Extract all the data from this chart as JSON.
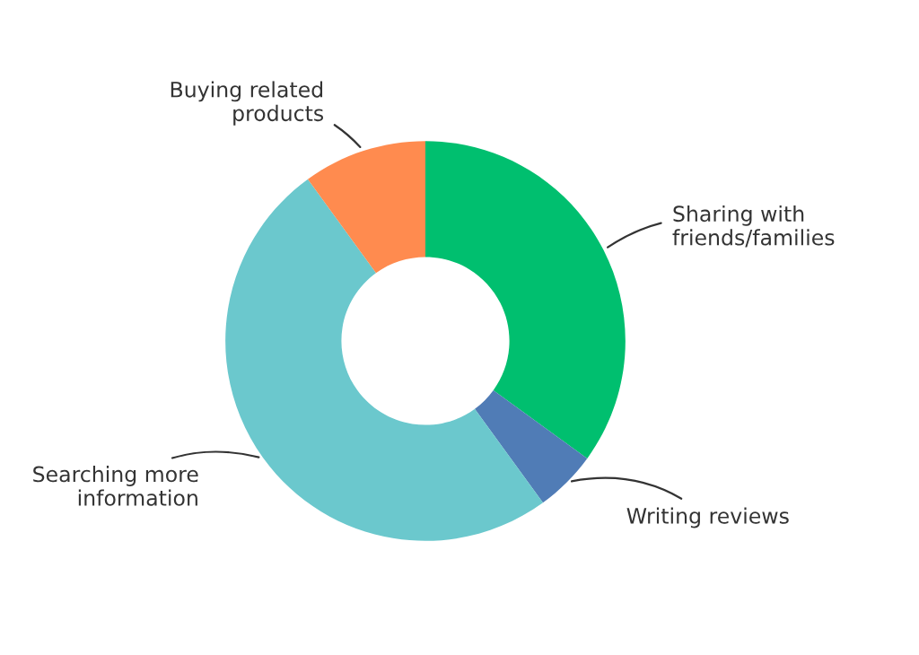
{
  "chart_data": {
    "type": "donut",
    "categories": [
      "Sharing with\nfriends/families",
      "Writing reviews",
      "Searching more\ninformation",
      "Buying related\nproducts"
    ],
    "values": [
      35,
      5,
      50,
      10
    ],
    "colors": [
      "#00bf6f",
      "#507cb6",
      "#6bc8cd",
      "#ff8b4f"
    ],
    "legend": false
  }
}
